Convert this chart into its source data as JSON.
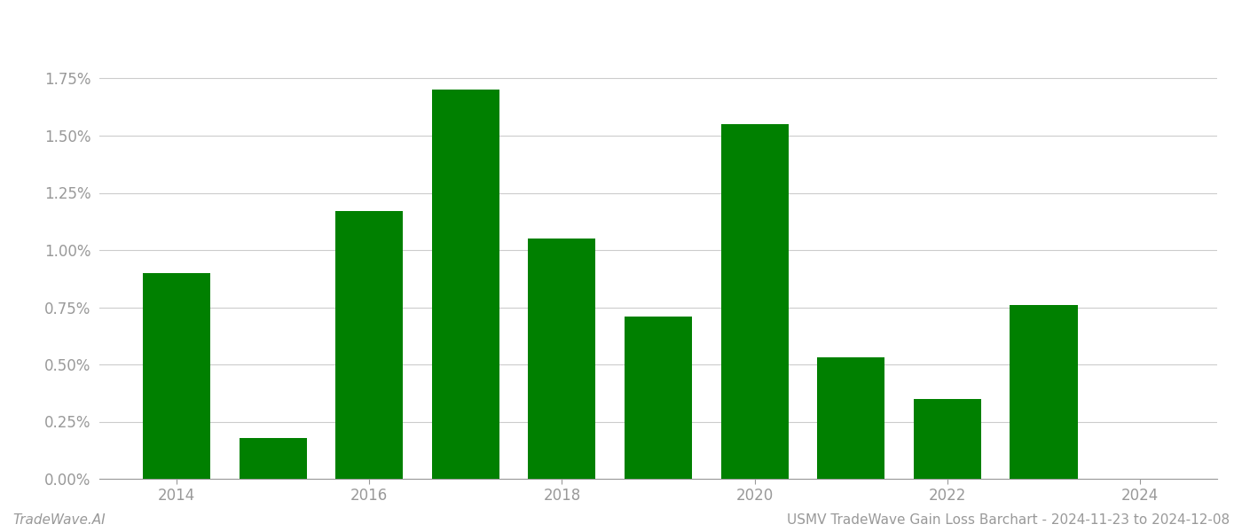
{
  "years": [
    2014,
    2015,
    2016,
    2017,
    2018,
    2019,
    2020,
    2021,
    2022,
    2023,
    2024
  ],
  "values": [
    0.009,
    0.0018,
    0.0117,
    0.017,
    0.0105,
    0.0071,
    0.0155,
    0.0053,
    0.0035,
    0.0076,
    0.0
  ],
  "bar_color": "#008000",
  "background_color": "#ffffff",
  "grid_color": "#cccccc",
  "axis_label_color": "#999999",
  "title_text": "USMV TradeWave Gain Loss Barchart - 2024-11-23 to 2024-12-08",
  "watermark_text": "TradeWave.AI",
  "ylim_min": 0.0,
  "ylim_max": 0.02,
  "ytick_values": [
    0.0,
    0.0025,
    0.005,
    0.0075,
    0.01,
    0.0125,
    0.015,
    0.0175
  ],
  "ytick_labels": [
    "0.00%",
    "0.25%",
    "0.50%",
    "0.75%",
    "1.00%",
    "1.25%",
    "1.50%",
    "1.75%"
  ],
  "xtick_values": [
    2014,
    2016,
    2018,
    2020,
    2022,
    2024
  ],
  "title_fontsize": 11,
  "watermark_fontsize": 11,
  "tick_fontsize": 12,
  "bar_width": 0.7
}
